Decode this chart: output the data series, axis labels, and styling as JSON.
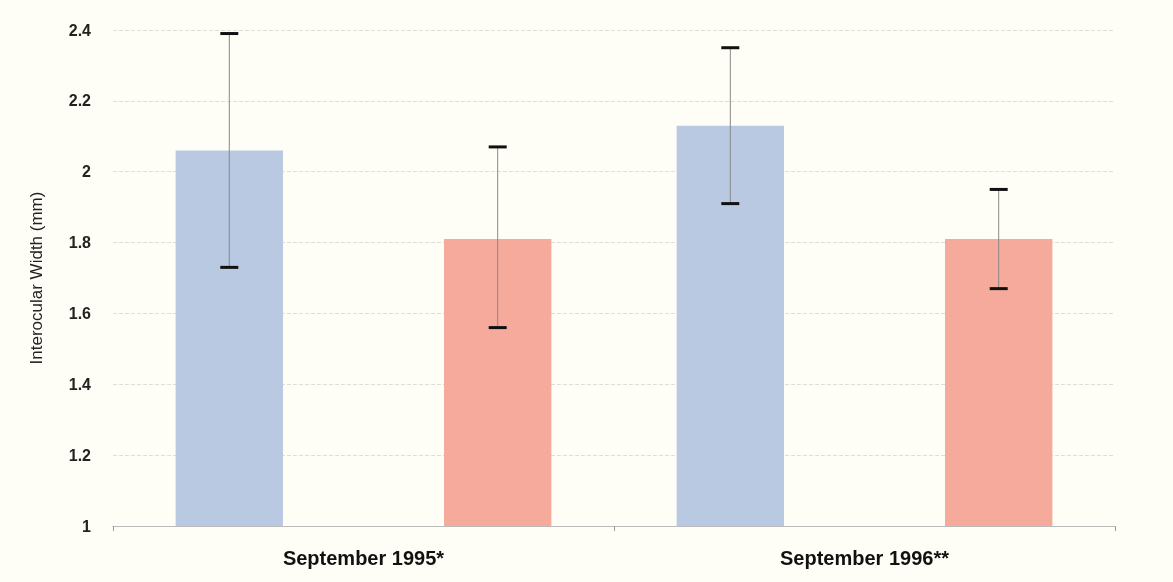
{
  "chart_data": {
    "type": "bar",
    "ylabel": "Interocular Width (mm)",
    "categories": [
      "September 1995*",
      "September 1996**"
    ],
    "series": [
      {
        "color": "#b9c9e1",
        "values": [
          2.06,
          2.13
        ],
        "errors": [
          [
            1.73,
            2.39
          ],
          [
            1.91,
            2.35
          ]
        ]
      },
      {
        "color": "#f5aa9c",
        "values": [
          1.81,
          1.81
        ],
        "errors": [
          [
            1.56,
            2.07
          ],
          [
            1.67,
            1.95
          ]
        ]
      }
    ],
    "ylim": [
      1,
      2.4
    ],
    "yticks": [
      1,
      1.2,
      1.4,
      1.6,
      1.8,
      2,
      2.2,
      2.4
    ],
    "grid": "y"
  }
}
